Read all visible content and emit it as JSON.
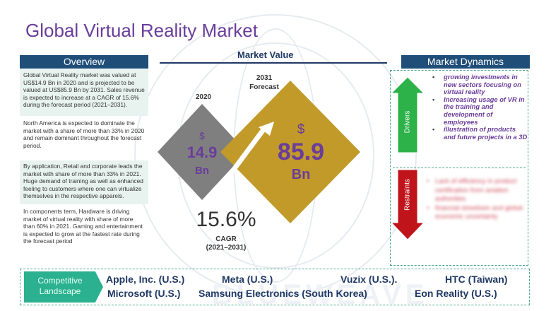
{
  "title": "Global Virtual Reality Market",
  "overview": {
    "heading": "Overview",
    "blocks": [
      "Global Virtual Reality market was valued at US$14.9 Bn in 2020 and is projected to be valued at US$85.9 Bn by 2031. Sales revenue is expected to increase at a CAGR of 15.6% during the forecast period (2021–2031).",
      "North America is expected to dominate the market with a share of more than 33% in 2020 and remain dominant throughout the forecast period.",
      "By application, Retail and corporate leads the market with share of more than 33% in 2021. Huge demand of training as well as enhanced feeling to customers where one can virtualize themselves in the respective apparels.",
      "In components term, Hardware is driving market of virtual reality with share of more than 60% in 2021. Gaming and entertainment is expected to grow at the fastest rate during the forecast period"
    ]
  },
  "market_value": {
    "heading": "Market Value",
    "y2020": {
      "year": "2020",
      "currency": "$",
      "value": "14.9",
      "unit": "Bn"
    },
    "y2031": {
      "year": "2031",
      "forecast": "Forecast",
      "currency": "$",
      "value": "85.9",
      "unit": "Bn"
    },
    "cagr": {
      "value": "15.6%",
      "label": "CAGR",
      "period": "(2021–2031)"
    }
  },
  "market_dynamics": {
    "heading": "Market Dynamics",
    "drivers_label": "Drivers",
    "restraints_label": "Restraints",
    "drivers": [
      "growing investments in new sectors focusing on virtual reality",
      "Increasing usage of VR in the training and development of employees",
      "illustration of products and future projects in a 3D"
    ],
    "restraints": [
      "Lack of efficiency in product certification from aviation authorities",
      "financial slowdown and global economic uncertainty"
    ]
  },
  "competitive": {
    "label_line1": "Competitive",
    "label_line2": "Landscape",
    "companies": [
      "Apple, Inc. (U.S.)",
      "Meta (U.S.)",
      "Vuzix (U.S.).",
      "HTC (Taiwan)",
      "Microsoft (U.S.)",
      "Samsung Electronics (South Korea)",
      "Eon Reality (U.S.)"
    ]
  },
  "colors": {
    "title": "#6a3d9a",
    "panel_header": "#1f4e79",
    "diamond_2020": "#7f7f7f",
    "diamond_2031": "#c19a2a",
    "drivers_arrow": "#2db24a",
    "restraints_arrow": "#c0141b",
    "accent_green": "#2bb18f"
  },
  "icons": [
    "globe-network-icon",
    "growth-arrow-icon",
    "up-arrow-icon",
    "down-arrow-icon"
  ]
}
